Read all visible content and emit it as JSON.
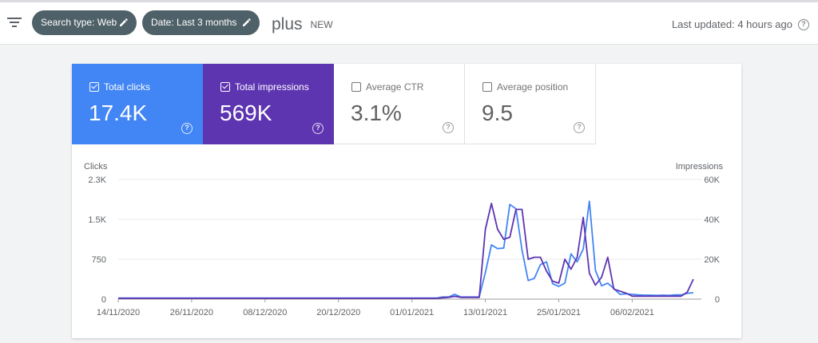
{
  "toolbar": {
    "filter_icon": "filter-list-icon",
    "chips": [
      {
        "label": "Search type: Web",
        "icon": "pencil-icon"
      },
      {
        "label": "Date: Last 3 months",
        "icon": "pencil-icon"
      }
    ],
    "new_label": "NEW",
    "new_icon": "plus",
    "last_updated": "Last updated: 4 hours ago"
  },
  "metrics": [
    {
      "label": "Total clicks",
      "value": "17.4K",
      "checked": true,
      "color": "#4285f4"
    },
    {
      "label": "Total impressions",
      "value": "569K",
      "checked": true,
      "color": "#5e35b1"
    },
    {
      "label": "Average CTR",
      "value": "3.1%",
      "checked": false
    },
    {
      "label": "Average position",
      "value": "9.5",
      "checked": false
    }
  ],
  "help_glyph": "?",
  "chart_data": {
    "type": "line",
    "left_axis": {
      "label": "Clicks",
      "ticks": [
        "0",
        "750",
        "1.5K",
        "2.3K"
      ],
      "tick_values": [
        0,
        750,
        1500,
        2250
      ],
      "max": 2250
    },
    "right_axis": {
      "label": "Impressions",
      "ticks": [
        "0",
        "20K",
        "40K",
        "60K"
      ],
      "tick_values": [
        0,
        20000,
        40000,
        60000
      ],
      "max": 60000
    },
    "x_labels": [
      "14/11/2020",
      "26/11/2020",
      "08/12/2020",
      "20/12/2020",
      "01/01/2021",
      "13/01/2021",
      "25/01/2021",
      "06/02/2021"
    ],
    "series": [
      {
        "name": "Total clicks",
        "axis": "left",
        "color": "#4285f4",
        "values": [
          20,
          20,
          20,
          20,
          20,
          20,
          20,
          20,
          20,
          20,
          20,
          20,
          20,
          20,
          20,
          20,
          20,
          20,
          20,
          20,
          20,
          20,
          20,
          20,
          20,
          20,
          20,
          20,
          20,
          20,
          20,
          20,
          20,
          20,
          20,
          20,
          20,
          20,
          20,
          20,
          20,
          20,
          20,
          20,
          20,
          20,
          20,
          20,
          20,
          20,
          20,
          20,
          20,
          40,
          40,
          90,
          40,
          40,
          40,
          40,
          500,
          1020,
          950,
          960,
          1780,
          1700,
          920,
          350,
          390,
          650,
          700,
          290,
          240,
          300,
          850,
          700,
          940,
          1840,
          540,
          250,
          300,
          200,
          90,
          100,
          90,
          80,
          75,
          75,
          70,
          75,
          70,
          80,
          80,
          110,
          120
        ]
      },
      {
        "name": "Total impressions",
        "axis": "right",
        "color": "#5e35b1",
        "values": [
          400,
          400,
          400,
          400,
          400,
          400,
          400,
          400,
          400,
          400,
          400,
          400,
          400,
          400,
          400,
          400,
          400,
          400,
          400,
          400,
          400,
          400,
          400,
          400,
          400,
          400,
          400,
          400,
          400,
          400,
          400,
          400,
          400,
          400,
          400,
          400,
          400,
          400,
          400,
          400,
          400,
          400,
          400,
          400,
          400,
          400,
          400,
          400,
          400,
          400,
          400,
          400,
          400,
          700,
          900,
          1400,
          900,
          900,
          900,
          900,
          35000,
          48000,
          35000,
          30000,
          31000,
          45000,
          45000,
          20000,
          21000,
          21000,
          14000,
          9000,
          8000,
          20000,
          15000,
          21000,
          41000,
          13000,
          7000,
          11000,
          21000,
          5000,
          4000,
          3000,
          1500,
          1500,
          1500,
          1500,
          1500,
          1500,
          1500,
          1500,
          1500,
          3500,
          10000
        ]
      }
    ],
    "x_label_indices": [
      0,
      12,
      24,
      36,
      48,
      60,
      72,
      84
    ],
    "grid": true
  }
}
